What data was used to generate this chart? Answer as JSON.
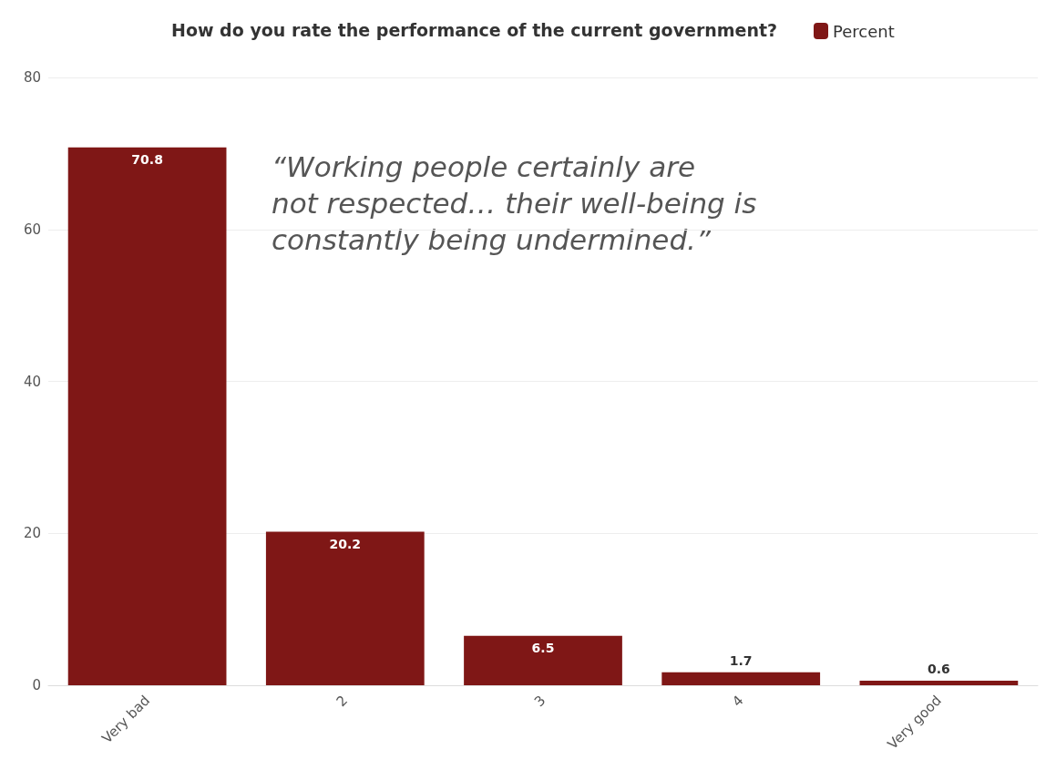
{
  "chart_data": {
    "type": "bar",
    "title": "How do you rate the performance of the current government?",
    "categories": [
      "Very bad",
      "2",
      "3",
      "4",
      "Very good"
    ],
    "series": [
      {
        "name": "Percent",
        "color": "#7f1716",
        "values": [
          70.8,
          20.2,
          6.5,
          1.7,
          0.6
        ]
      }
    ],
    "ylim": [
      0,
      80
    ],
    "yticks": [
      0,
      20,
      40,
      60,
      80
    ],
    "grid": "y",
    "legend": "top",
    "data_labels": true,
    "annotations": [
      "“Working people certainly are\nnot respected… their well-being is\nconstantly being undermined.”"
    ]
  }
}
